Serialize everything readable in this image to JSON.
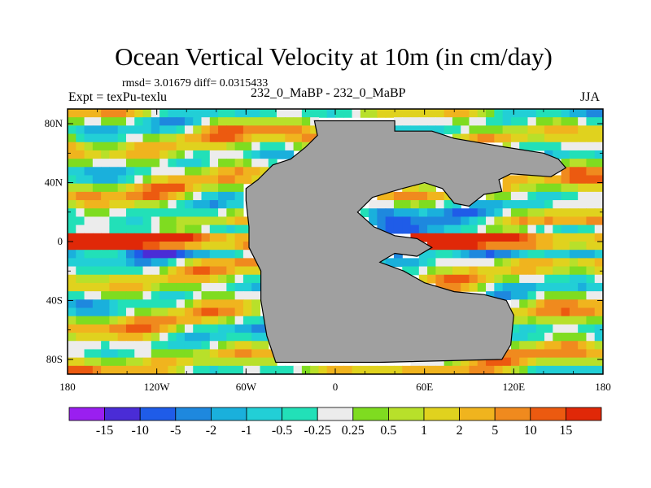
{
  "chart_data": {
    "type": "heatmap",
    "title": "Ocean Vertical Velocity at 10m (in cm/day)",
    "stats": "rmsd= 3.01679  diff= 0.0315433",
    "left_subtitle": "Expt = texPu-texlu",
    "center_subtitle": "232_0_MaBP - 232_0_MaBP",
    "right_subtitle": "JJA",
    "x_ticks": [
      "180",
      "120W",
      "60W",
      "0",
      "60E",
      "120E",
      "180"
    ],
    "y_ticks": [
      "80N",
      "40N",
      "0",
      "40S",
      "80S"
    ],
    "xlim": [
      -180,
      180
    ],
    "ylim": [
      -90,
      90
    ],
    "land_color": "#a0a0a0",
    "colorbar": {
      "colors": [
        "#9a1ff0",
        "#4a2cd6",
        "#1f5ce8",
        "#1e88de",
        "#1ab0dc",
        "#22cfd6",
        "#22e0b8",
        "#ececec",
        "#7fdc20",
        "#b8e02a",
        "#e0d21e",
        "#f0b41e",
        "#f08a1e",
        "#ec5a10",
        "#e02808"
      ],
      "labels": [
        "-15",
        "-10",
        "-5",
        "-2",
        "-1",
        "-0.5",
        "-0.25",
        "0.25",
        "0.5",
        "1",
        "2",
        "5",
        "10",
        "15"
      ]
    }
  }
}
